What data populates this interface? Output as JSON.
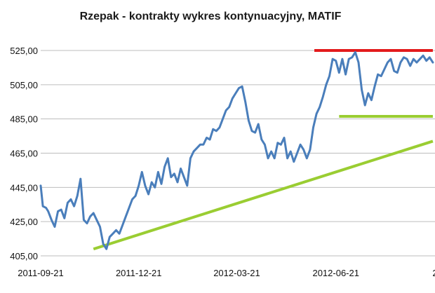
{
  "chart_data": {
    "type": "line",
    "title": "Rzepak - kontrakty wykres kontynuacyjny, MATIF",
    "xlabel": "",
    "ylabel": "",
    "x_tick_labels": [
      "2011-09-21",
      "2011-12-21",
      "2012-03-21",
      "2012-06-21",
      "2"
    ],
    "y_tick_labels": [
      "405,00",
      "425,00",
      "445,00",
      "465,00",
      "485,00",
      "505,00",
      "525,00"
    ],
    "ylim": [
      405,
      525
    ],
    "grid": true,
    "legend": "none",
    "series": [
      {
        "color": "#4a7ebb",
        "x": [
          "2011-09-21",
          "2011-09-23",
          "2011-09-26",
          "2011-09-28",
          "2011-10-01",
          "2011-10-04",
          "2011-10-07",
          "2011-10-10",
          "2011-10-13",
          "2011-10-16",
          "2011-10-19",
          "2011-10-22",
          "2011-10-25",
          "2011-10-28",
          "2011-10-31",
          "2011-11-03",
          "2011-11-06",
          "2011-11-09",
          "2011-11-12",
          "2011-11-15",
          "2011-11-18",
          "2011-11-21",
          "2011-11-24",
          "2011-11-27",
          "2011-11-30",
          "2011-12-03",
          "2011-12-06",
          "2011-12-09",
          "2011-12-12",
          "2011-12-15",
          "2011-12-18",
          "2011-12-21",
          "2011-12-24",
          "2011-12-27",
          "2011-12-30",
          "2012-01-02",
          "2012-01-05",
          "2012-01-08",
          "2012-01-11",
          "2012-01-14",
          "2012-01-17",
          "2012-01-20",
          "2012-01-23",
          "2012-01-26",
          "2012-01-29",
          "2012-02-01",
          "2012-02-04",
          "2012-02-07",
          "2012-02-10",
          "2012-02-13",
          "2012-02-16",
          "2012-02-19",
          "2012-02-22",
          "2012-02-25",
          "2012-02-28",
          "2012-03-02",
          "2012-03-05",
          "2012-03-08",
          "2012-03-11",
          "2012-03-14",
          "2012-03-17",
          "2012-03-20",
          "2012-03-23",
          "2012-03-26",
          "2012-03-29",
          "2012-04-01",
          "2012-04-04",
          "2012-04-07",
          "2012-04-10",
          "2012-04-13",
          "2012-04-16",
          "2012-04-19",
          "2012-04-22",
          "2012-04-25",
          "2012-04-28",
          "2012-05-01",
          "2012-05-04",
          "2012-05-07",
          "2012-05-10",
          "2012-05-13",
          "2012-05-16",
          "2012-05-19",
          "2012-05-22",
          "2012-05-25",
          "2012-05-28",
          "2012-05-31",
          "2012-06-03",
          "2012-06-06",
          "2012-06-09",
          "2012-06-12",
          "2012-06-15",
          "2012-06-18",
          "2012-06-21",
          "2012-06-24",
          "2012-06-27",
          "2012-06-30",
          "2012-07-03",
          "2012-07-06",
          "2012-07-09",
          "2012-07-12",
          "2012-07-15",
          "2012-07-18",
          "2012-07-21",
          "2012-07-24",
          "2012-07-27",
          "2012-07-30",
          "2012-08-02",
          "2012-08-05",
          "2012-08-08",
          "2012-08-11",
          "2012-08-14",
          "2012-08-17",
          "2012-08-20",
          "2012-08-23",
          "2012-08-26",
          "2012-08-29",
          "2012-09-01",
          "2012-09-04",
          "2012-09-07",
          "2012-09-10",
          "2012-09-13",
          "2012-09-16",
          "2012-09-19"
        ],
        "values": [
          446,
          434,
          433,
          431,
          426,
          422,
          431,
          432,
          427,
          436,
          438,
          434,
          440,
          450,
          426,
          424,
          428,
          430,
          426,
          422,
          412,
          409,
          416,
          418,
          420,
          418,
          423,
          428,
          433,
          438,
          440,
          446,
          454,
          446,
          441,
          448,
          445,
          454,
          447,
          457,
          462,
          451,
          453,
          448,
          456,
          451,
          446,
          462,
          466,
          468,
          470,
          470,
          474,
          473,
          479,
          478,
          480,
          485,
          490,
          492,
          497,
          500,
          503,
          504,
          495,
          484,
          478,
          477,
          482,
          473,
          470,
          462,
          466,
          462,
          471,
          470,
          474,
          462,
          466,
          460,
          465,
          470,
          467,
          462,
          467,
          480,
          488,
          492,
          498,
          505,
          510,
          520,
          519,
          512,
          520,
          511,
          520,
          521,
          524,
          518,
          502,
          493,
          500,
          496,
          504,
          511,
          510,
          514,
          518,
          520,
          513,
          512,
          518,
          521,
          520,
          516,
          520,
          518,
          520,
          522,
          519,
          521,
          518
        ]
      }
    ],
    "annotations": [
      {
        "type": "resistance-line",
        "color": "#e31a1c",
        "x_start": "2012-06-01",
        "x_end": "2012-09-19",
        "y": 525
      },
      {
        "type": "support-line",
        "color": "#9acd32",
        "x_start": "2012-06-24",
        "x_end": "2012-09-19",
        "y": 486.5
      },
      {
        "type": "trend-line",
        "color": "#9acd32",
        "x_start": "2011-11-09",
        "x_end": "2012-09-19",
        "y_start": 409,
        "y_end": 472
      }
    ]
  }
}
